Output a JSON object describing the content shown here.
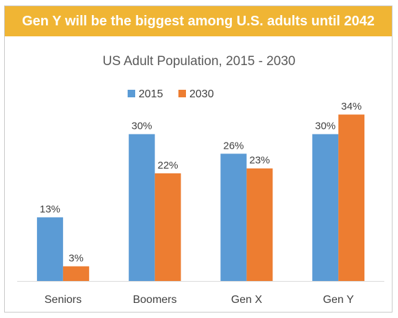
{
  "banner": {
    "text": "Gen Y will be the biggest among U.S. adults until 2042"
  },
  "chart_data": {
    "type": "bar",
    "title": "US Adult Population, 2015 - 2030",
    "categories": [
      "Seniors",
      "Boomers",
      "Gen X",
      "Gen Y"
    ],
    "series": [
      {
        "name": "2015",
        "values": [
          13,
          30,
          26,
          30
        ],
        "labels": [
          "13%",
          "30%",
          "26%",
          "30%"
        ],
        "color": "#5b9bd5"
      },
      {
        "name": "2030",
        "values": [
          3,
          22,
          23,
          34
        ],
        "labels": [
          "3%",
          "22%",
          "23%",
          "34%"
        ],
        "color": "#ed7d31"
      }
    ],
    "ylim": [
      0,
      35
    ],
    "legend": "top",
    "grid": false,
    "xlabel": "",
    "ylabel": ""
  }
}
